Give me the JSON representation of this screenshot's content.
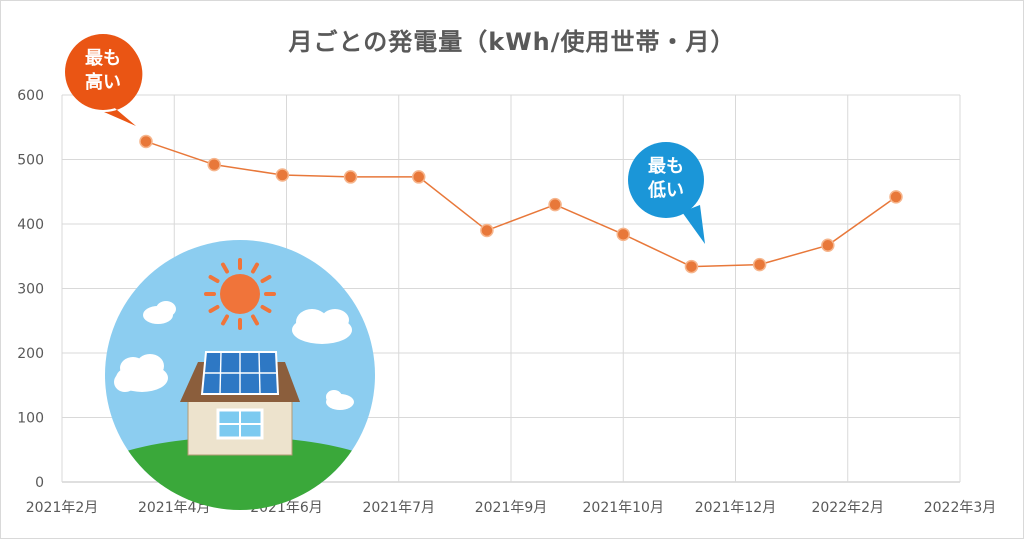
{
  "chart_data": {
    "type": "line",
    "title": "月ごとの発電量（kWh/使用世帯・月）",
    "xlabel": "",
    "ylabel": "",
    "ylim": [
      0,
      600
    ],
    "yticks": [
      0,
      100,
      200,
      300,
      400,
      500,
      600
    ],
    "x_tick_labels": [
      "2021年2月",
      "2021年4月",
      "2021年6月",
      "2021年7月",
      "2021年9月",
      "2021年10月",
      "2021年12月",
      "2022年2月",
      "2022年3月"
    ],
    "series": [
      {
        "values": [
          528,
          492,
          476,
          473,
          473,
          390,
          430,
          384,
          334,
          337,
          367,
          442
        ]
      }
    ],
    "line_color": "#e8783a",
    "grid": true,
    "annotations": {
      "max_label": [
        "最も",
        "高い"
      ],
      "min_label": [
        "最も",
        "低い"
      ]
    }
  },
  "colors": {
    "max_bubble": "#ea5514",
    "min_bubble": "#1b96d8",
    "sky": "#8ccdf0",
    "grass": "#3aa83a",
    "sun": "#f08a3a"
  }
}
